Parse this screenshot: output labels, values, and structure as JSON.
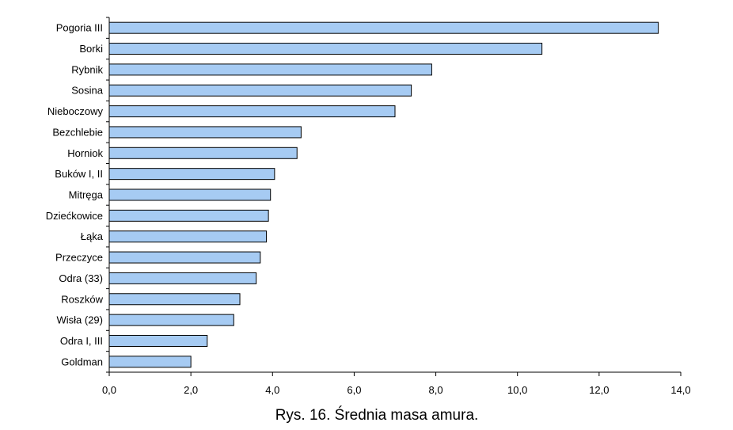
{
  "chart_data": {
    "type": "bar",
    "orientation": "horizontal",
    "categories": [
      "Pogoria III",
      "Borki",
      "Rybnik",
      "Sosina",
      "Nieboczowy",
      "Bezchlebie",
      "Horniok",
      "Buków I, II",
      "Mitręga",
      "Dziećkowice",
      "Łąka",
      "Przeczyce",
      "Odra (33)",
      "Roszków",
      "Wisła (29)",
      "Odra I, III",
      "Goldman"
    ],
    "values": [
      13.45,
      10.6,
      7.9,
      7.4,
      7.0,
      4.7,
      4.6,
      4.05,
      3.95,
      3.9,
      3.85,
      3.7,
      3.6,
      3.2,
      3.05,
      2.4,
      2.0
    ],
    "xlim": [
      0,
      14
    ],
    "xticks": [
      "0,0",
      "2,0",
      "4,0",
      "6,0",
      "8,0",
      "10,0",
      "12,0",
      "14,0"
    ],
    "bar_color": "#a6cbf3",
    "title": "Rys. 16. Średnia masa amura.",
    "xlabel": "",
    "ylabel": "",
    "grid": false,
    "legend": "none"
  }
}
